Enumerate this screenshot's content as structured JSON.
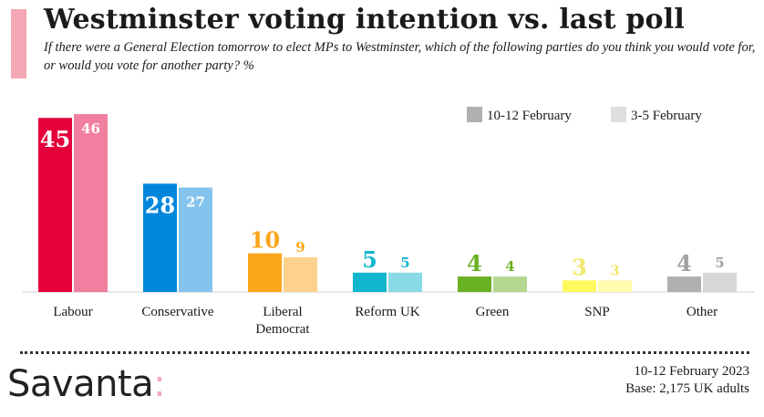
{
  "header": {
    "title": "Westminster voting intention vs. last poll",
    "subtitle": "If there were a General Election tomorrow to elect MPs to Westminster, which of the following parties do you think you would vote for, or would you vote for another party? %"
  },
  "colors": {
    "accent": "#f4a7b5"
  },
  "chart_data": {
    "type": "bar",
    "categories": [
      "Labour",
      "Conservative",
      "Liberal Democrat",
      "Reform UK",
      "Green",
      "SNP",
      "Other"
    ],
    "category_lines": [
      [
        "Labour"
      ],
      [
        "Conservative"
      ],
      [
        "Liberal",
        "Democrat"
      ],
      [
        "Reform UK"
      ],
      [
        "Green"
      ],
      [
        "SNP"
      ],
      [
        "Other"
      ]
    ],
    "series": [
      {
        "name": "10-12 February",
        "values": [
          45,
          28,
          10,
          5,
          4,
          3,
          4
        ],
        "colors": [
          "#e4003b",
          "#0087dc",
          "#faa61a",
          "#12b6cf",
          "#6ab023",
          "#fff95d",
          "#b0b0b0"
        ],
        "label_colors": [
          "#ffffff",
          "#ffffff",
          "#faa61a",
          "#12b6cf",
          "#6ab023",
          "#f0e86a",
          "#a0a0a0"
        ]
      },
      {
        "name": "3-5 February",
        "values": [
          46,
          27,
          9,
          5,
          4,
          3,
          5
        ],
        "colors": [
          "#f07fa0",
          "#84c3ee",
          "#fdd28d",
          "#89dae7",
          "#b5d891",
          "#fffcae",
          "#d8d8d8"
        ],
        "label_colors": [
          "#ffffff",
          "#ffffff",
          "#faa61a",
          "#12b6cf",
          "#6ab023",
          "#f0e86a",
          "#a0a0a0"
        ]
      }
    ],
    "legend": {
      "placement": "top-right",
      "items": [
        {
          "label": "10-12 February",
          "color": "#b0b0b0"
        },
        {
          "label": "3-5 February",
          "color": "#dedede"
        }
      ]
    },
    "ylim": [
      0,
      46
    ],
    "grid": false
  },
  "footer": {
    "logo": "Savanta",
    "logo_colon": ":",
    "date": "10-12 February 2023",
    "base": "Base: 2,175 UK adults"
  }
}
